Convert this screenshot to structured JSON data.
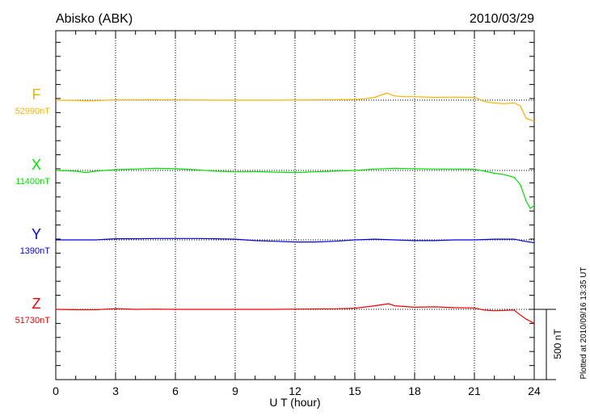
{
  "chart_data": {
    "type": "line",
    "title": "Abisko (ABK)",
    "date": "2010/03/29",
    "xlabel": "U T (hour)",
    "xlim": [
      0,
      24
    ],
    "xticks": [
      "0",
      "3",
      "6",
      "9",
      "12",
      "15",
      "18",
      "21",
      "24"
    ],
    "scale_bar_label": "500 nT",
    "footer": "Plotted at 2010/09/16 13:35 UT",
    "grid": "dotted at 3-hour intervals and baselines",
    "series": [
      {
        "name": "F",
        "baseline_label": "52990nT",
        "baseline": 52990,
        "color": "#f5b400",
        "points": [
          [
            0,
            52990
          ],
          [
            1,
            52988
          ],
          [
            1.5,
            52985
          ],
          [
            2,
            52986
          ],
          [
            2.5,
            52990
          ],
          [
            3,
            52992
          ],
          [
            4,
            52992
          ],
          [
            5,
            52993
          ],
          [
            6,
            52992
          ],
          [
            7,
            52991
          ],
          [
            8,
            52990
          ],
          [
            9,
            52990
          ],
          [
            10,
            52990
          ],
          [
            11,
            52990
          ],
          [
            12,
            52991
          ],
          [
            13,
            52992
          ],
          [
            14,
            52993
          ],
          [
            15,
            52995
          ],
          [
            15.5,
            53000
          ],
          [
            16,
            53010
          ],
          [
            16.6,
            53040
          ],
          [
            17,
            53020
          ],
          [
            17.5,
            53015
          ],
          [
            18,
            53015
          ],
          [
            19,
            53010
          ],
          [
            20,
            53012
          ],
          [
            21,
            53010
          ],
          [
            21.5,
            52980
          ],
          [
            22,
            52970
          ],
          [
            22.5,
            52965
          ],
          [
            23,
            52970
          ],
          [
            23.3,
            52950
          ],
          [
            23.6,
            52860
          ],
          [
            24,
            52840
          ]
        ]
      },
      {
        "name": "X",
        "baseline_label": "11400nT",
        "baseline": 11400,
        "color": "#00dd00",
        "points": [
          [
            0,
            11400
          ],
          [
            1,
            11395
          ],
          [
            1.5,
            11385
          ],
          [
            2,
            11395
          ],
          [
            3,
            11405
          ],
          [
            4,
            11410
          ],
          [
            5,
            11415
          ],
          [
            6,
            11412
          ],
          [
            7,
            11405
          ],
          [
            8,
            11395
          ],
          [
            9,
            11390
          ],
          [
            10,
            11392
          ],
          [
            11,
            11388
          ],
          [
            12,
            11385
          ],
          [
            13,
            11390
          ],
          [
            14,
            11395
          ],
          [
            15,
            11400
          ],
          [
            16,
            11410
          ],
          [
            17,
            11415
          ],
          [
            18,
            11412
          ],
          [
            19,
            11410
          ],
          [
            20,
            11410
          ],
          [
            21,
            11408
          ],
          [
            21.5,
            11395
          ],
          [
            22,
            11380
          ],
          [
            22.5,
            11370
          ],
          [
            23,
            11350
          ],
          [
            23.3,
            11300
          ],
          [
            23.6,
            11180
          ],
          [
            23.8,
            11130
          ],
          [
            24,
            11150
          ]
        ]
      },
      {
        "name": "Y",
        "baseline_label": "1390nT",
        "baseline": 1390,
        "color": "#0000dd",
        "points": [
          [
            0,
            1390
          ],
          [
            1,
            1390
          ],
          [
            2,
            1390
          ],
          [
            3,
            1398
          ],
          [
            4,
            1398
          ],
          [
            5,
            1400
          ],
          [
            6,
            1400
          ],
          [
            7,
            1400
          ],
          [
            8,
            1398
          ],
          [
            9,
            1395
          ],
          [
            10,
            1385
          ],
          [
            11,
            1380
          ],
          [
            12,
            1375
          ],
          [
            13,
            1375
          ],
          [
            14,
            1380
          ],
          [
            15,
            1390
          ],
          [
            16,
            1395
          ],
          [
            17,
            1390
          ],
          [
            18,
            1385
          ],
          [
            19,
            1385
          ],
          [
            20,
            1390
          ],
          [
            21,
            1390
          ],
          [
            22,
            1395
          ],
          [
            23,
            1395
          ],
          [
            23.5,
            1380
          ],
          [
            24,
            1370
          ]
        ]
      },
      {
        "name": "Z",
        "baseline_label": "51730nT",
        "baseline": 51730,
        "color": "#ee0000",
        "points": [
          [
            0,
            51730
          ],
          [
            1,
            51727
          ],
          [
            2,
            51727
          ],
          [
            3,
            51735
          ],
          [
            4,
            51730
          ],
          [
            5,
            51732
          ],
          [
            6,
            51730
          ],
          [
            7,
            51730
          ],
          [
            8,
            51730
          ],
          [
            9,
            51730
          ],
          [
            10,
            51730
          ],
          [
            11,
            51730
          ],
          [
            12,
            51732
          ],
          [
            13,
            51733
          ],
          [
            14,
            51734
          ],
          [
            15,
            51738
          ],
          [
            16,
            51755
          ],
          [
            16.7,
            51770
          ],
          [
            17,
            51755
          ],
          [
            18,
            51745
          ],
          [
            19,
            51748
          ],
          [
            20,
            51742
          ],
          [
            21,
            51740
          ],
          [
            21.5,
            51725
          ],
          [
            22,
            51720
          ],
          [
            23,
            51725
          ],
          [
            23.2,
            51700
          ],
          [
            23.6,
            51660
          ],
          [
            24,
            51630
          ]
        ]
      }
    ]
  }
}
